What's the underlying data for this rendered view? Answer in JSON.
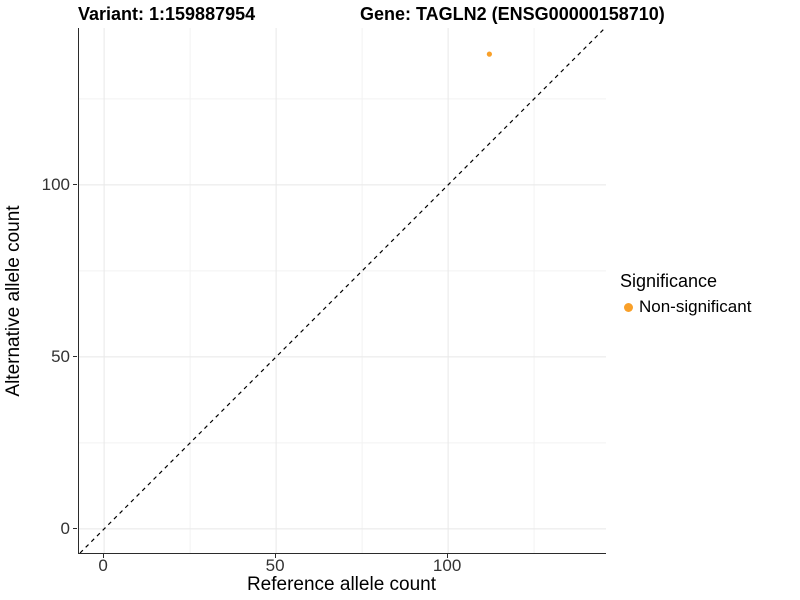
{
  "chart_data": {
    "type": "scatter",
    "title_left": "Variant: 1:159887954",
    "title_right": "Gene: TAGLN2 (ENSG00000158710)",
    "xlabel": "Reference allele count",
    "ylabel": "Alternative allele count",
    "xlim": [
      -7.3,
      145.9
    ],
    "ylim": [
      -7.0,
      145.6
    ],
    "x_ticks": [
      0,
      50,
      100
    ],
    "y_ticks": [
      0,
      50,
      100
    ],
    "x_minor_ticks": [
      25,
      75,
      125
    ],
    "y_minor_ticks": [
      25,
      75,
      125
    ],
    "grid": true,
    "colors": {
      "point": "#F9A029",
      "axis_line": "#2b2b2b",
      "major_grid": "#e8e8e8",
      "minor_grid": "#f2f2f2",
      "reference_line": "#000000"
    },
    "series": [
      {
        "name": "Non-significant",
        "color": "#F9A029",
        "points": [
          {
            "x": 112,
            "y": 138
          }
        ]
      }
    ],
    "reference_line": {
      "slope": 1,
      "intercept": 0,
      "style": "dashed"
    },
    "legend": {
      "title": "Significance",
      "position": "right",
      "entries": [
        {
          "label": "Non-significant",
          "color": "#F9A029"
        }
      ]
    }
  }
}
